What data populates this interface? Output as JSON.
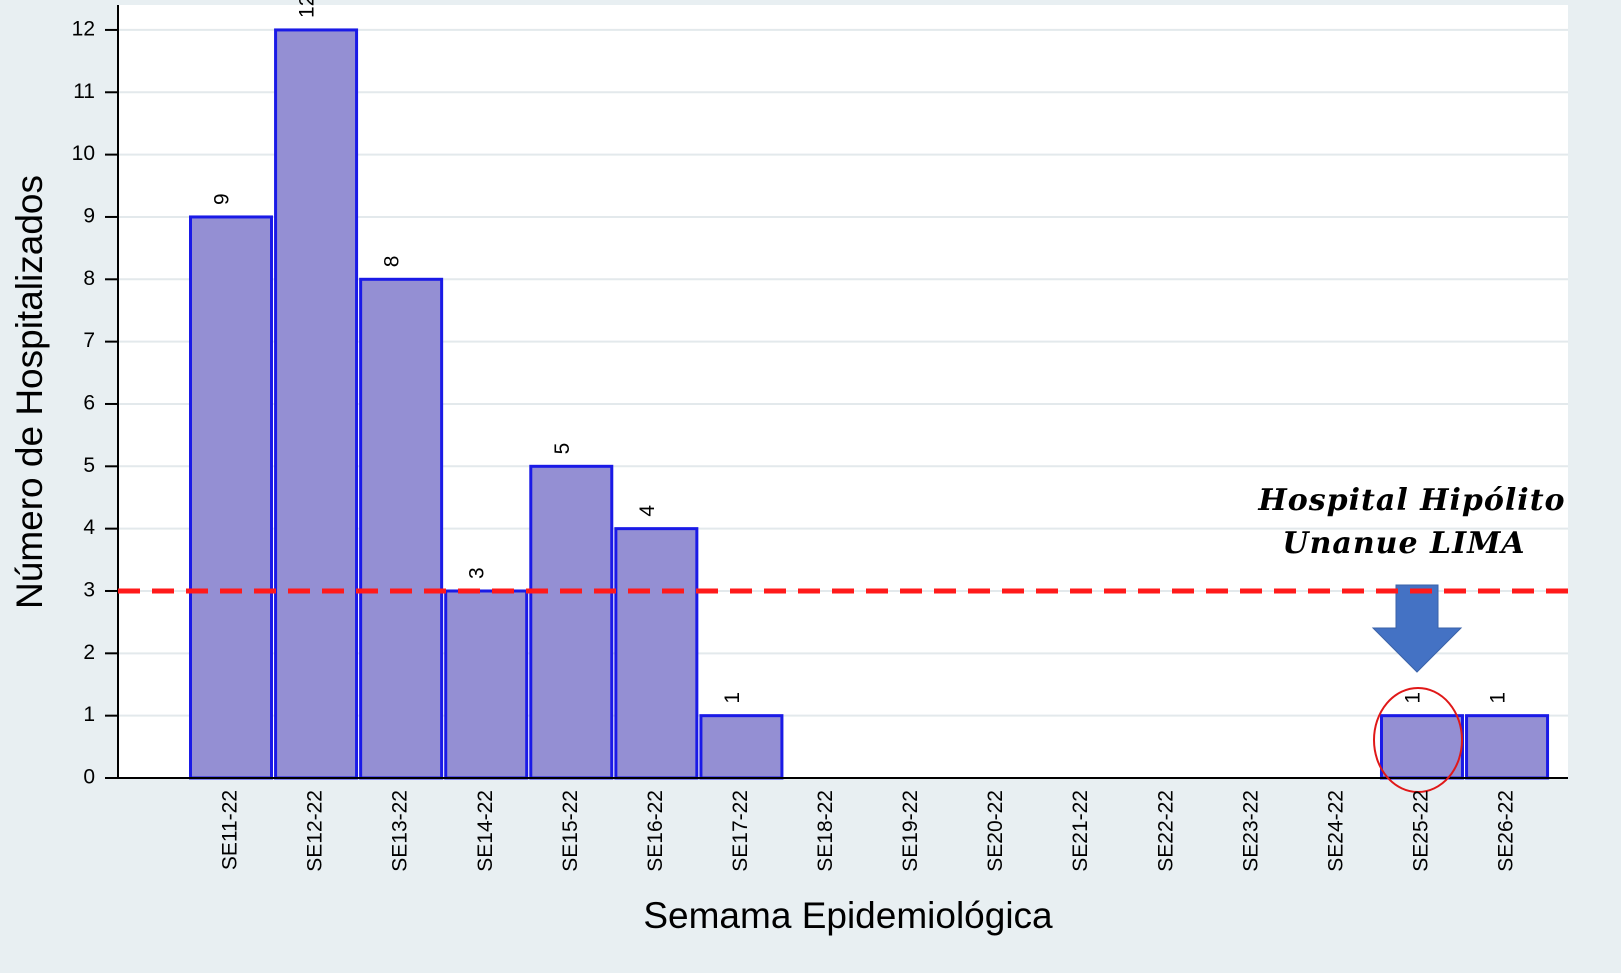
{
  "chart_data": {
    "type": "bar",
    "x_label": "Semama Epidemiológica",
    "y_label": "Número de Hospitalizados",
    "categories": [
      "SE11-22",
      "SE12-22",
      "SE13-22",
      "SE14-22",
      "SE15-22",
      "SE16-22",
      "SE17-22",
      "SE18-22",
      "SE19-22",
      "SE20-22",
      "SE21-22",
      "SE22-22",
      "SE23-22",
      "SE24-22",
      "SE25-22",
      "SE26-22"
    ],
    "values": [
      9,
      12,
      8,
      3,
      5,
      4,
      1,
      0,
      0,
      0,
      0,
      0,
      0,
      0,
      1,
      1
    ],
    "color": "#948fd3",
    "edge_color": "#1a1ae6",
    "ylim": [
      0,
      12.4
    ],
    "yticks": [
      0,
      1,
      2,
      3,
      4,
      5,
      6,
      7,
      8,
      9,
      10,
      11,
      12
    ],
    "grid": true,
    "reference_line": {
      "value": 3,
      "color": "#ff1a1a"
    },
    "annotation": [
      "Hospital Hipólito",
      "Unanue LIMA"
    ]
  }
}
